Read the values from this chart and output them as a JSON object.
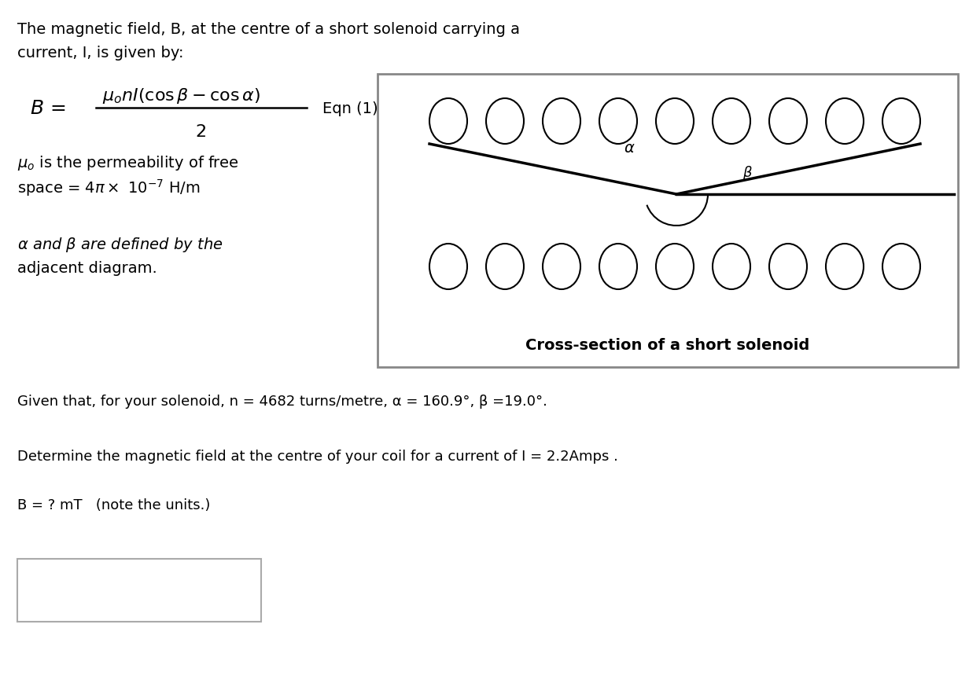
{
  "bg_color": "#ffffff",
  "title_text1": "The magnetic field, B, at the centre of a short solenoid carrying a",
  "title_text2": "current, I, is given by:",
  "eqn_label": "Eqn (1)",
  "mu_text1": "$\\mu_o$ is the permeability of free",
  "mu_text2": "space = 4$\\pi\\times$ 10$^{-7}$ H/m",
  "alpha_beta_text1": "$\\alpha$ and $\\beta$ are defined by the",
  "alpha_beta_text2": "adjacent diagram.",
  "given_text": "Given that, for your solenoid, n = 4682 turns/metre, α = 160.9°, β =19.0°.",
  "determine_text": "Determine the magnetic field at the centre of your coil for a current of I = 2.2Amps .",
  "b_equals_text": "B = ? mT   (note the units.)",
  "cross_section_label": "Cross-section of a short solenoid",
  "text_color": "#000000",
  "box_color": "#888888",
  "line_color": "#000000"
}
